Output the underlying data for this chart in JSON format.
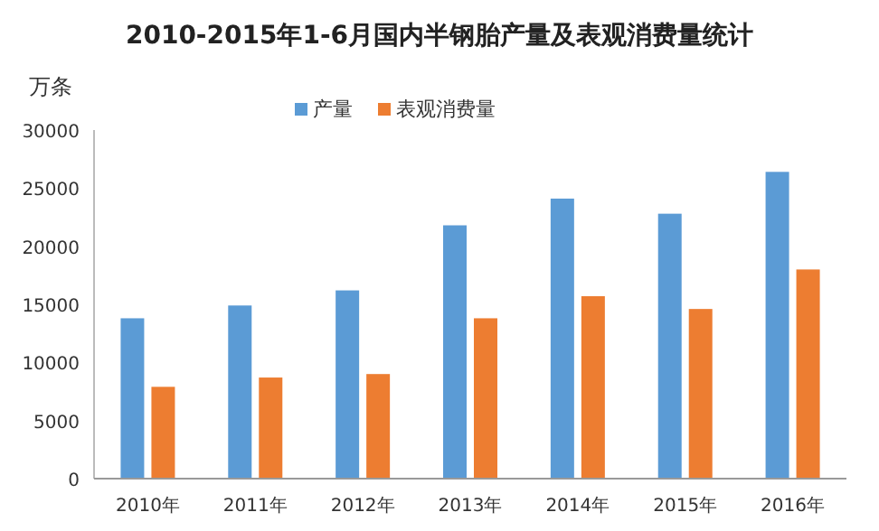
{
  "chart_data": {
    "type": "bar",
    "title": "2010-2015年1-6月国内半钢胎产量及表观消费量统计",
    "ylabel": "万条",
    "categories": [
      "2010年",
      "2011年",
      "2012年",
      "2013年",
      "2014年",
      "2015年",
      "2016年"
    ],
    "series": [
      {
        "name": "产量",
        "color": "#5b9bd5",
        "values": [
          13800,
          14900,
          16200,
          21800,
          24100,
          22800,
          26400
        ]
      },
      {
        "name": "表观消费量",
        "color": "#ed7d31",
        "values": [
          7900,
          8700,
          9000,
          13800,
          15700,
          14600,
          18000
        ]
      }
    ],
    "ylim": [
      0,
      30000
    ],
    "yticks": [
      0,
      5000,
      10000,
      15000,
      20000,
      25000,
      30000
    ],
    "grid": false,
    "legend": "top"
  }
}
